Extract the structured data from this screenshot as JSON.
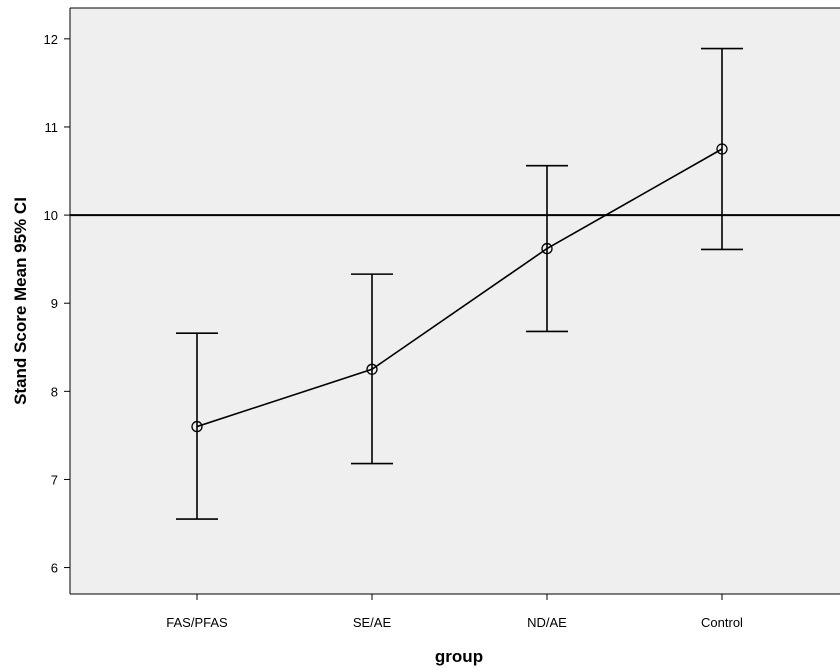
{
  "chart_data": {
    "type": "line",
    "xlabel": "group",
    "ylabel": "Stand Score Mean 95% CI",
    "categories": [
      "FAS/PFAS",
      "SE/AE",
      "ND/AE",
      "Control"
    ],
    "series": [
      {
        "means": [
          7.6,
          8.25,
          9.62,
          10.75
        ],
        "ci_lower": [
          6.55,
          7.18,
          8.68,
          9.61
        ],
        "ci_upper": [
          8.66,
          9.33,
          10.56,
          11.89
        ]
      }
    ],
    "ylim": [
      5.7,
      12.35
    ],
    "yticks": [
      "6",
      "7",
      "8",
      "9",
      "10",
      "11",
      "12"
    ],
    "reference_line_y": 10,
    "background_color": "#efefef",
    "line_color": "#000000"
  }
}
